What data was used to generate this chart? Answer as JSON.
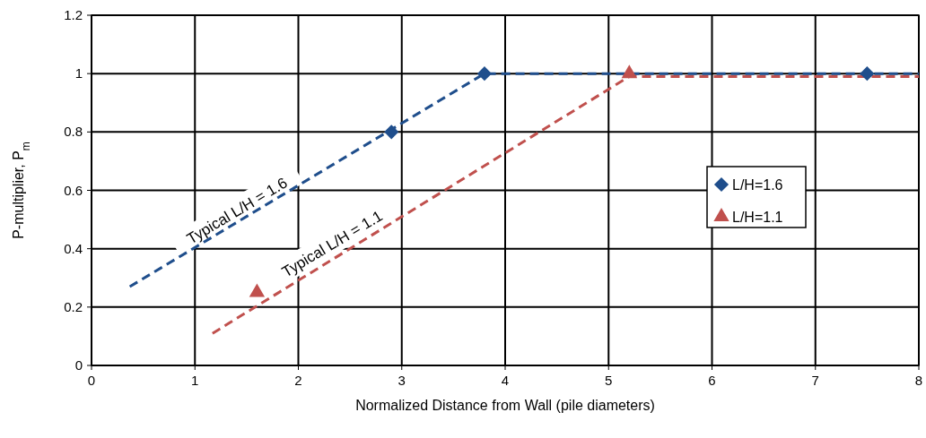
{
  "chart_data": {
    "type": "scatter",
    "xlabel": "Normalized Distance from Wall (pile diameters)",
    "ylabel": "P-multiplier, P$_{m}$",
    "xlim": [
      0,
      8
    ],
    "xticks": [
      0,
      1,
      2,
      3,
      4,
      5,
      6,
      7,
      8
    ],
    "ylim": [
      0,
      1.2
    ],
    "yticks": [
      0,
      0.2,
      0.4,
      0.6,
      0.8,
      1,
      1.2
    ],
    "grid": true,
    "legend": "right",
    "series": [
      {
        "type": "line",
        "color": "#1f4e8c",
        "line_style": "dashed",
        "marker": "none",
        "x": [
          0.37,
          3.8,
          8
        ],
        "values": [
          0.27,
          1.0,
          1.0
        ]
      },
      {
        "type": "line",
        "color": "#c0504d",
        "line_style": "dashed",
        "marker": "none",
        "x": [
          1.17,
          5.2,
          8
        ],
        "values": [
          0.11,
          0.99,
          0.99
        ]
      },
      {
        "name": "L/H=1.6",
        "color": "#1f4e8c",
        "marker": "diamond",
        "x": [
          2.9,
          3.8,
          7.5
        ],
        "values": [
          0.8,
          1.0,
          1.0
        ]
      },
      {
        "name": "L/H=1.1",
        "color": "#c0504d",
        "marker": "triangle",
        "x": [
          1.6,
          5.2
        ],
        "values": [
          0.25,
          1.0
        ]
      }
    ],
    "annotations": [
      "Typical L/H = 1.6",
      "Typical L/H = 1.1"
    ]
  }
}
